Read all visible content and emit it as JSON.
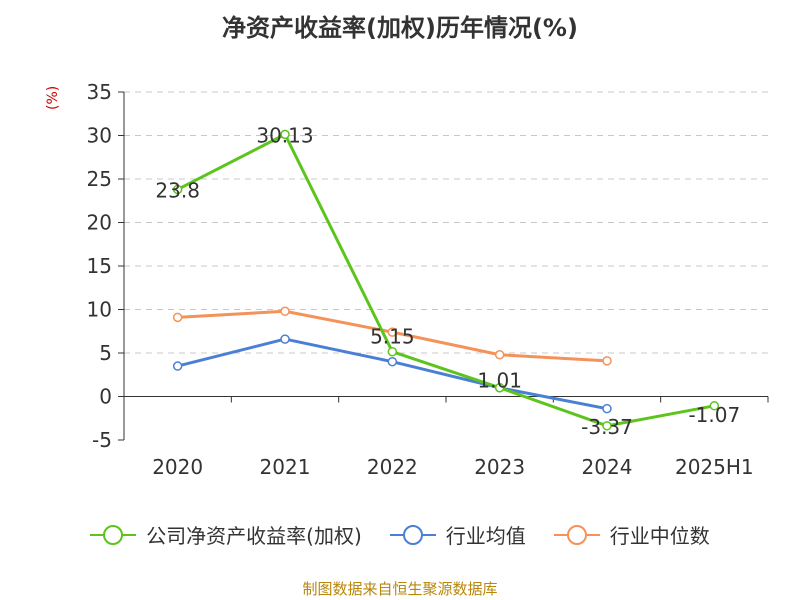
{
  "page": {
    "title": "净资产收益率(加权)历年情况(%)",
    "unit_label": "(%)",
    "source": "制图数据来自恒生聚源数据库"
  },
  "chart_data": {
    "type": "line",
    "title": "净资产收益率(加权)历年情况(%)",
    "xlabel": "",
    "ylabel": "(%)",
    "categories": [
      "2020",
      "2021",
      "2022",
      "2023",
      "2024",
      "2025H1"
    ],
    "ylim": [
      -5,
      35
    ],
    "yticks": [
      35,
      30,
      25,
      20,
      15,
      10,
      5,
      0,
      -5
    ],
    "grid": true,
    "legend_position": "bottom",
    "series": [
      {
        "name": "公司净资产收益率(加权)",
        "color": "#5cc41c",
        "values": [
          23.8,
          30.13,
          5.15,
          1.01,
          -3.37,
          -1.07
        ],
        "labels": [
          "23.8",
          "30.13",
          "5.15",
          "1.01",
          "-3.37",
          "-1.07"
        ],
        "show_labels": true
      },
      {
        "name": "行业均值",
        "color": "#4a7fd6",
        "values": [
          3.5,
          6.6,
          4.0,
          1.0,
          -1.4,
          null
        ],
        "show_labels": false
      },
      {
        "name": "行业中位数",
        "color": "#f5925a",
        "values": [
          9.1,
          9.8,
          7.4,
          4.8,
          4.1,
          null
        ],
        "show_labels": false
      }
    ]
  }
}
